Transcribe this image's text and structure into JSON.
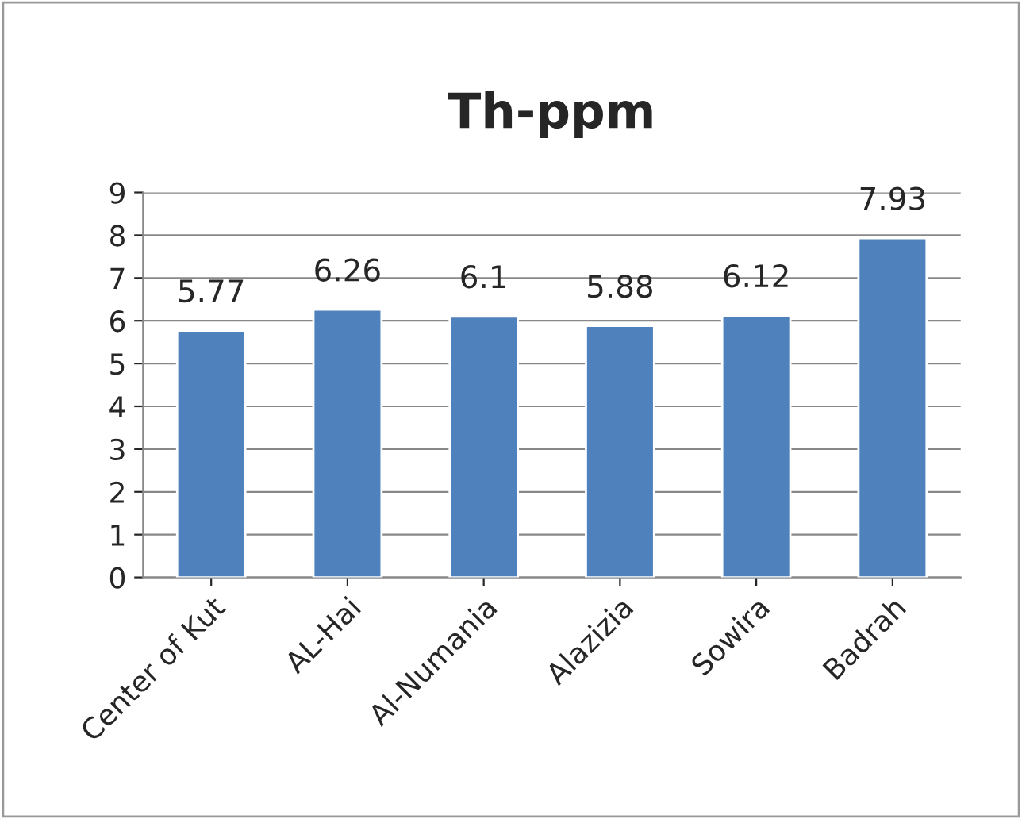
{
  "chart_data": {
    "type": "bar",
    "title": "Th-ppm",
    "categories": [
      "Center of Kut",
      "AL-Hai",
      "Al-Numania",
      "Alazizia",
      "Sowira",
      "Badrah"
    ],
    "values": [
      5.77,
      6.26,
      6.1,
      5.88,
      6.12,
      7.93
    ],
    "color": "#4f81bd",
    "ylim": [
      0,
      9
    ],
    "yticks": [
      0,
      1,
      2,
      3,
      4,
      5,
      6,
      7,
      8,
      9
    ],
    "grid": "y",
    "data_labels": true
  }
}
